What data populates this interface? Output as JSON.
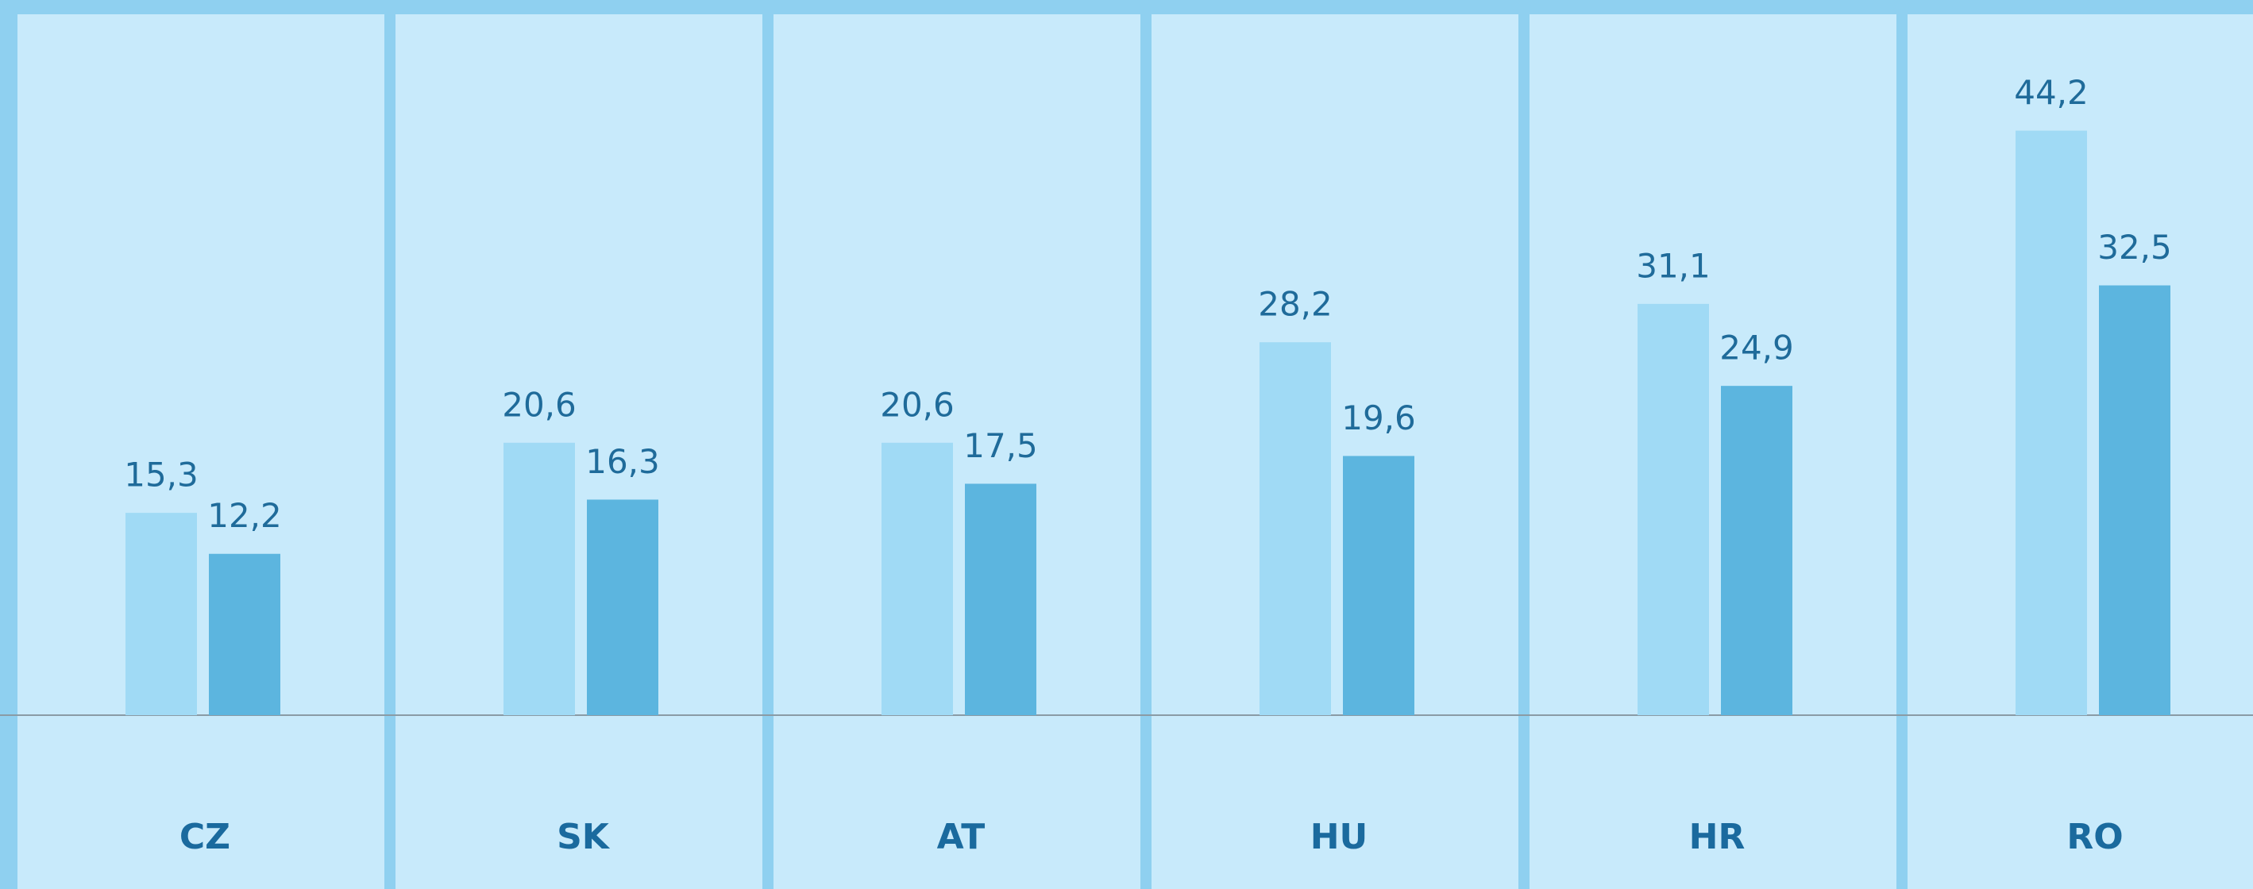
{
  "chart_data": {
    "type": "bar",
    "categories": [
      "CZ",
      "SK",
      "AT",
      "HU",
      "HR",
      "RO"
    ],
    "series": [
      {
        "color": "#a0daf5",
        "values": [
          15.3,
          20.6,
          20.6,
          28.2,
          31.1,
          44.2
        ],
        "value_labels": [
          "15,3",
          "20,6",
          "20,6",
          "28,2",
          "31,1",
          "44,2"
        ]
      },
      {
        "color": "#5cb5df",
        "values": [
          12.2,
          16.3,
          17.5,
          19.6,
          24.9,
          32.5
        ],
        "value_labels": [
          "12,2",
          "16,3",
          "17,5",
          "19,6",
          "24,9",
          "32,5"
        ]
      }
    ],
    "ylim": [
      0,
      53
    ]
  }
}
